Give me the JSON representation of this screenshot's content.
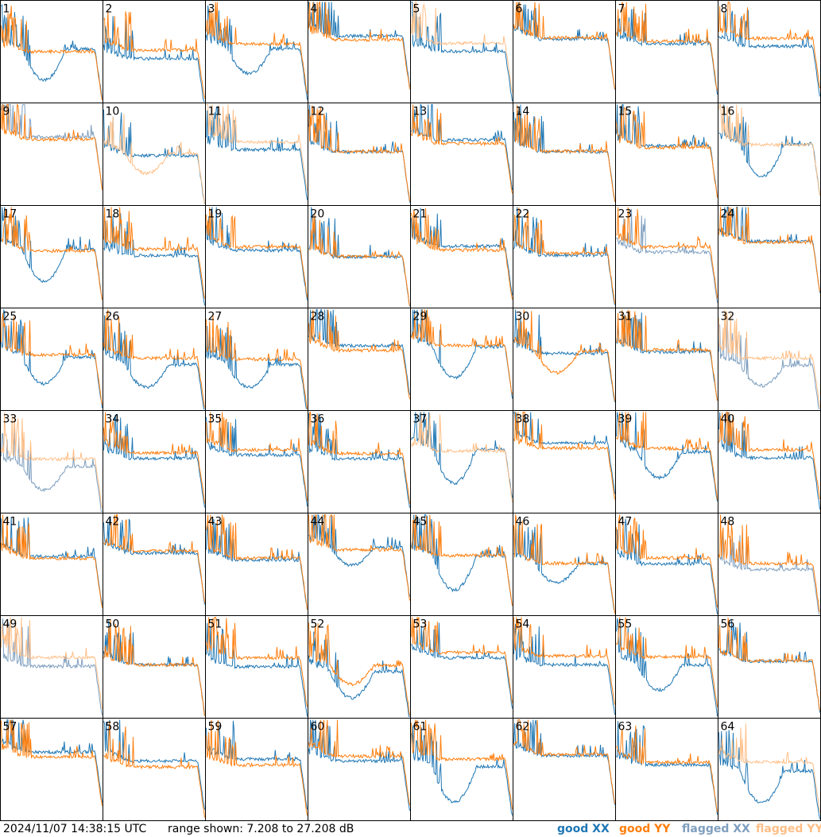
{
  "footer": {
    "timestamp": "2024/11/07 14:38:15 UTC",
    "range_text": "range shown: 7.208 to 27.208 dB"
  },
  "legend": [
    {
      "prefix": "good",
      "pol": "XX",
      "color": "#1f77b4"
    },
    {
      "prefix": "good",
      "pol": "YY",
      "color": "#ff7f0e"
    },
    {
      "prefix": "flagged",
      "pol": "XX",
      "color": "#7f9fbf"
    },
    {
      "prefix": "flagged",
      "pol": "YY",
      "color": "#ffbf87"
    }
  ],
  "colors": {
    "good_xx": "#1f77b4",
    "good_yy": "#ff7f0e",
    "flagged_xx": "#7f9fbf",
    "flagged_yy": "#ffbf87"
  },
  "chart_data": {
    "type": "line",
    "grid_layout": "8x8 small multiples",
    "range_db": [
      7.208,
      27.208
    ],
    "series_names": [
      "good XX",
      "good YY",
      "flagged XX",
      "flagged YY"
    ],
    "panels": [
      {
        "id": "1",
        "xx": "good",
        "yy": "good"
      },
      {
        "id": "2",
        "xx": "good",
        "yy": "good"
      },
      {
        "id": "3",
        "xx": "good",
        "yy": "good"
      },
      {
        "id": "4",
        "xx": "good",
        "yy": "good"
      },
      {
        "id": "5",
        "xx": "good",
        "yy": "flagged"
      },
      {
        "id": "6",
        "xx": "good",
        "yy": "good"
      },
      {
        "id": "7",
        "xx": "good",
        "yy": "good"
      },
      {
        "id": "8",
        "xx": "good",
        "yy": "good"
      },
      {
        "id": "9",
        "xx": "flagged",
        "yy": "good"
      },
      {
        "id": "10",
        "xx": "good",
        "yy": "flagged"
      },
      {
        "id": "11",
        "xx": "good",
        "yy": "flagged"
      },
      {
        "id": "12",
        "xx": "good",
        "yy": "good"
      },
      {
        "id": "13",
        "xx": "good",
        "yy": "good"
      },
      {
        "id": "14",
        "xx": "good",
        "yy": "good"
      },
      {
        "id": "15",
        "xx": "good",
        "yy": "good"
      },
      {
        "id": "16",
        "xx": "good",
        "yy": "flagged"
      },
      {
        "id": "17",
        "xx": "good",
        "yy": "good"
      },
      {
        "id": "18",
        "xx": "good",
        "yy": "good"
      },
      {
        "id": "19",
        "xx": "good",
        "yy": "good"
      },
      {
        "id": "20",
        "xx": "good",
        "yy": "good"
      },
      {
        "id": "21",
        "xx": "good",
        "yy": "good"
      },
      {
        "id": "22",
        "xx": "good",
        "yy": "good"
      },
      {
        "id": "23",
        "xx": "flagged",
        "yy": "good"
      },
      {
        "id": "24",
        "xx": "good",
        "yy": "good"
      },
      {
        "id": "25",
        "xx": "good",
        "yy": "good"
      },
      {
        "id": "26",
        "xx": "good",
        "yy": "good"
      },
      {
        "id": "27",
        "xx": "good",
        "yy": "good"
      },
      {
        "id": "28",
        "xx": "good",
        "yy": "good"
      },
      {
        "id": "29",
        "xx": "good",
        "yy": "good"
      },
      {
        "id": "30",
        "xx": "good",
        "yy": "good"
      },
      {
        "id": "31",
        "xx": "good",
        "yy": "good"
      },
      {
        "id": "32",
        "xx": "flagged",
        "yy": "flagged"
      },
      {
        "id": "33",
        "xx": "flagged",
        "yy": "flagged"
      },
      {
        "id": "34",
        "xx": "good",
        "yy": "good"
      },
      {
        "id": "35",
        "xx": "good",
        "yy": "good"
      },
      {
        "id": "36",
        "xx": "good",
        "yy": "good"
      },
      {
        "id": "37",
        "xx": "good",
        "yy": "flagged"
      },
      {
        "id": "38",
        "xx": "good",
        "yy": "good"
      },
      {
        "id": "39",
        "xx": "good",
        "yy": "good"
      },
      {
        "id": "40",
        "xx": "good",
        "yy": "good"
      },
      {
        "id": "41",
        "xx": "good",
        "yy": "good"
      },
      {
        "id": "42",
        "xx": "good",
        "yy": "good"
      },
      {
        "id": "43",
        "xx": "good",
        "yy": "good"
      },
      {
        "id": "44",
        "xx": "good",
        "yy": "good"
      },
      {
        "id": "45",
        "xx": "good",
        "yy": "good"
      },
      {
        "id": "46",
        "xx": "good",
        "yy": "good"
      },
      {
        "id": "47",
        "xx": "good",
        "yy": "good"
      },
      {
        "id": "48",
        "xx": "flagged",
        "yy": "good"
      },
      {
        "id": "49",
        "xx": "flagged",
        "yy": "flagged"
      },
      {
        "id": "50",
        "xx": "good",
        "yy": "good"
      },
      {
        "id": "51",
        "xx": "good",
        "yy": "good"
      },
      {
        "id": "52",
        "xx": "good",
        "yy": "good"
      },
      {
        "id": "53",
        "xx": "good",
        "yy": "good"
      },
      {
        "id": "54",
        "xx": "good",
        "yy": "good"
      },
      {
        "id": "55",
        "xx": "good",
        "yy": "good"
      },
      {
        "id": "56",
        "xx": "good",
        "yy": "good"
      },
      {
        "id": "57",
        "xx": "good",
        "yy": "good"
      },
      {
        "id": "58",
        "xx": "good",
        "yy": "good"
      },
      {
        "id": "59",
        "xx": "good",
        "yy": "good"
      },
      {
        "id": "60",
        "xx": "good",
        "yy": "good"
      },
      {
        "id": "61",
        "xx": "good",
        "yy": "good"
      },
      {
        "id": "62",
        "xx": "good",
        "yy": "good"
      },
      {
        "id": "63",
        "xx": "good",
        "yy": "good"
      },
      {
        "id": "64",
        "xx": "good",
        "yy": "flagged"
      }
    ]
  }
}
